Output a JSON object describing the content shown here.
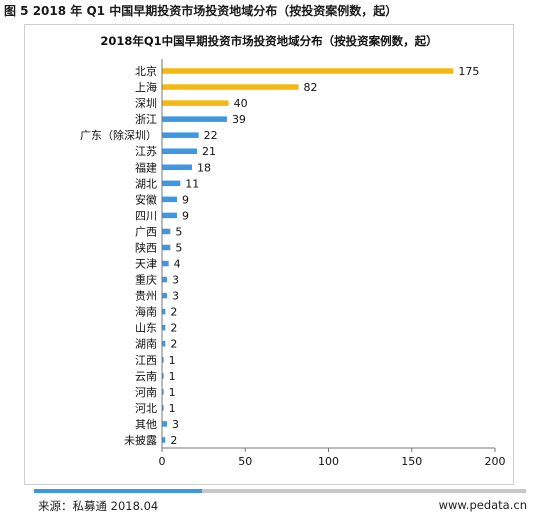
{
  "figure_caption": "图 5 2018 年 Q1 中国早期投资市场投资地域分布（按投资案例数，起）",
  "source": "来源：私募通 2018.04",
  "website": "www.pedata.cn",
  "colors": {
    "highlight": "#f5b80f",
    "bar": "#3d97e3",
    "axis": "#777777",
    "footer_bar": "#c8c8c8"
  },
  "chart_data": {
    "type": "bar",
    "orientation": "horizontal",
    "title": "2018年Q1中国早期投资市场投资地域分布（按投资案例数，起）",
    "categories": [
      "北京",
      "上海",
      "深圳",
      "浙江",
      "广东（除深圳）",
      "江苏",
      "福建",
      "湖北",
      "安徽",
      "四川",
      "广西",
      "陕西",
      "天津",
      "重庆",
      "贵州",
      "海南",
      "山东",
      "湖南",
      "江西",
      "云南",
      "河南",
      "河北",
      "其他",
      "未披露"
    ],
    "values": [
      175,
      82,
      40,
      39,
      22,
      21,
      18,
      11,
      9,
      9,
      5,
      5,
      4,
      3,
      3,
      2,
      2,
      2,
      1,
      1,
      1,
      1,
      3,
      2
    ],
    "highlight_top": 3,
    "xlim": [
      0,
      200
    ],
    "xticks": [
      0,
      50,
      100,
      150,
      200
    ],
    "grid": false,
    "legend": "none"
  }
}
